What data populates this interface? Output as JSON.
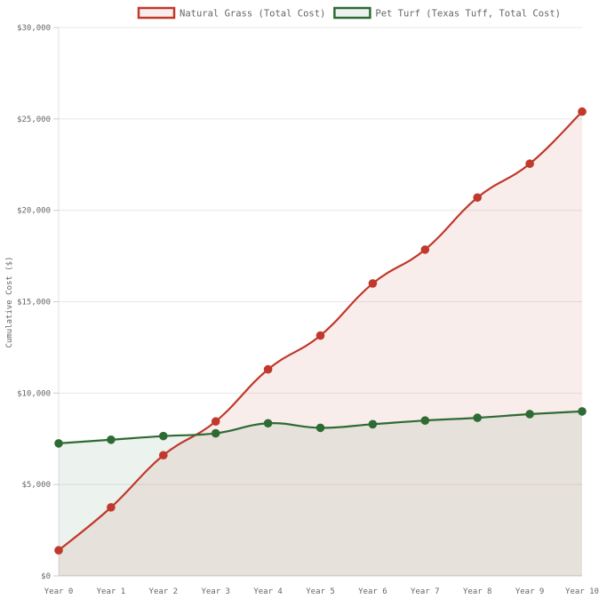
{
  "chart_data": {
    "type": "line",
    "title": "",
    "xlabel": "",
    "ylabel": "Cumulative Cost ($)",
    "ylim": [
      0,
      30000
    ],
    "yticks": [
      "$0",
      "$5,000",
      "$10,000",
      "$15,000",
      "$20,000",
      "$25,000",
      "$30,000"
    ],
    "ytick_values": [
      0,
      5000,
      10000,
      15000,
      20000,
      25000,
      30000
    ],
    "categories": [
      "Year 0",
      "Year 1",
      "Year 2",
      "Year 3",
      "Year 4",
      "Year 5",
      "Year 6",
      "Year 7",
      "Year 8",
      "Year 9",
      "Year 10"
    ],
    "grid": true,
    "legend_position": "top-right",
    "series": [
      {
        "name": "Natural Grass (Total Cost)",
        "color": "#c0392b",
        "fill": "rgba(192,57,43,0.09)",
        "values": [
          1400,
          3750,
          6600,
          8450,
          11300,
          13150,
          16000,
          17850,
          20700,
          22550,
          25400
        ]
      },
      {
        "name": "Pet Turf (Texas Tuff, Total Cost)",
        "color": "#2e6b34",
        "fill": "rgba(46,107,52,0.09)",
        "values": [
          7250,
          7450,
          7650,
          7800,
          8350,
          8100,
          8300,
          8500,
          8650,
          8850,
          9000
        ]
      }
    ]
  }
}
